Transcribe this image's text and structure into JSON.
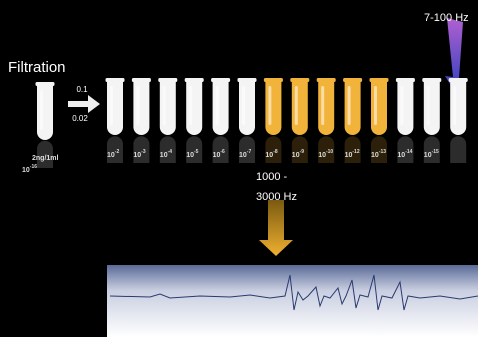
{
  "title": "Filtration",
  "source": {
    "label_top": "2ng/1ml",
    "label_bottom": {
      "base": "10",
      "exp": "-16"
    }
  },
  "filter": {
    "top": "0.1",
    "bottom": "0.02"
  },
  "tubes": [
    {
      "base": "10",
      "exp": "-2",
      "color": "#f4f4f4"
    },
    {
      "base": "10",
      "exp": "-3",
      "color": "#f4f4f4"
    },
    {
      "base": "10",
      "exp": "-4",
      "color": "#f4f4f4"
    },
    {
      "base": "10",
      "exp": "-5",
      "color": "#f4f4f4"
    },
    {
      "base": "10",
      "exp": "-6",
      "color": "#f4f4f4"
    },
    {
      "base": "10",
      "exp": "-7",
      "color": "#f4f4f4"
    },
    {
      "base": "10",
      "exp": "-8",
      "color": "#f2b33a"
    },
    {
      "base": "10",
      "exp": "-9",
      "color": "#f2b33a"
    },
    {
      "base": "10",
      "exp": "-10",
      "color": "#f2b33a"
    },
    {
      "base": "10",
      "exp": "-12",
      "color": "#f2b33a"
    },
    {
      "base": "10",
      "exp": "-13",
      "color": "#f2b33a"
    },
    {
      "base": "10",
      "exp": "-14",
      "color": "#f4f4f4"
    },
    {
      "base": "10",
      "exp": "-15",
      "color": "#f4f4f4"
    },
    {
      "base": null,
      "exp": null,
      "color": "#f4f4f4"
    }
  ],
  "low_band": "7-100 Hz",
  "high_band": {
    "line1": "1000 -",
    "line2": "3000 Hz"
  }
}
